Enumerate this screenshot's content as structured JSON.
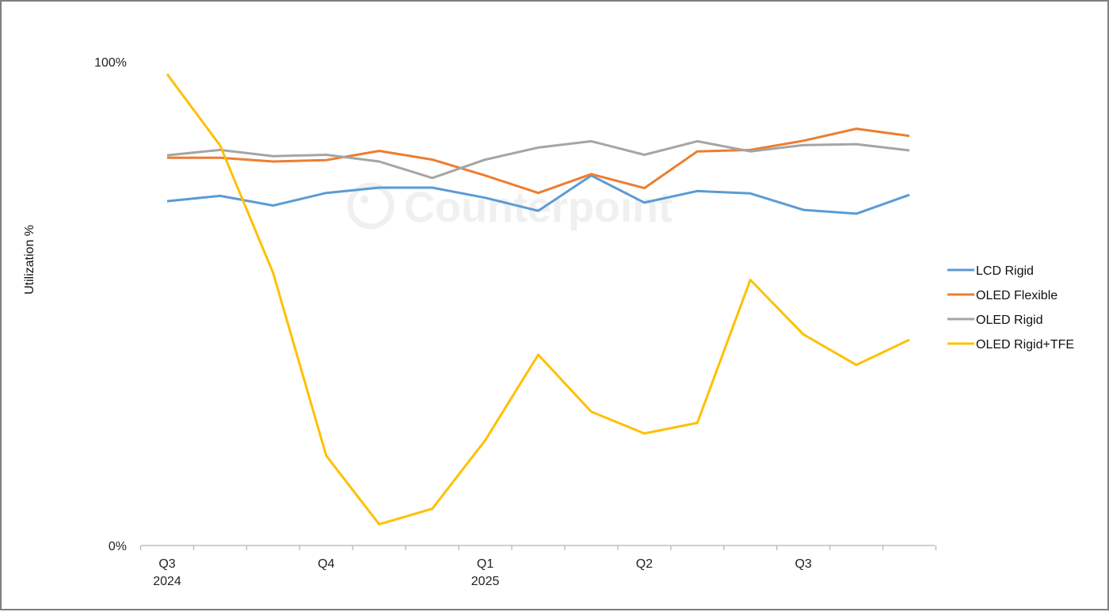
{
  "chart_data": {
    "type": "line",
    "title": "",
    "xlabel": "",
    "ylabel": "Utilization %",
    "ylim": [
      0,
      100
    ],
    "y_ticks": [
      "0%",
      "100%"
    ],
    "x_tick_labels": [
      {
        "index": 0,
        "lines": [
          "Q3",
          "2024"
        ]
      },
      {
        "index": 3,
        "lines": [
          "Q4"
        ]
      },
      {
        "index": 6,
        "lines": [
          "Q1",
          "2025"
        ]
      },
      {
        "index": 9,
        "lines": [
          "Q2"
        ]
      },
      {
        "index": 12,
        "lines": [
          "Q3"
        ]
      }
    ],
    "x": [
      0,
      1,
      2,
      3,
      4,
      5,
      6,
      7,
      8,
      9,
      10,
      11,
      12,
      13,
      14
    ],
    "grid": false,
    "legend_position": "right",
    "series": [
      {
        "name": "LCD Rigid",
        "color": "#5B9BD5",
        "values": [
          71.3,
          72.4,
          70.4,
          73.0,
          74.1,
          74.1,
          72.0,
          69.3,
          76.6,
          71.0,
          73.4,
          72.9,
          69.5,
          68.7,
          72.6
        ]
      },
      {
        "name": "OLED Flexible",
        "color": "#ED7D31",
        "values": [
          80.3,
          80.3,
          79.5,
          79.8,
          81.7,
          79.9,
          76.6,
          73.0,
          76.9,
          74.0,
          81.6,
          81.9,
          83.8,
          86.3,
          84.8
        ]
      },
      {
        "name": "OLED Rigid",
        "color": "#A5A5A5",
        "values": [
          80.8,
          81.9,
          80.6,
          80.9,
          79.5,
          76.1,
          79.9,
          82.4,
          83.7,
          80.9,
          83.7,
          81.6,
          82.9,
          83.1,
          81.8
        ]
      },
      {
        "name": "OLED Rigid+TFE",
        "color": "#FFC000",
        "values": [
          97.6,
          82.8,
          56.4,
          18.6,
          4.4,
          7.6,
          21.8,
          39.5,
          27.7,
          23.2,
          25.4,
          55.0,
          43.7,
          37.4,
          42.6
        ]
      }
    ]
  },
  "watermark": {
    "text": "Counterpoint"
  }
}
